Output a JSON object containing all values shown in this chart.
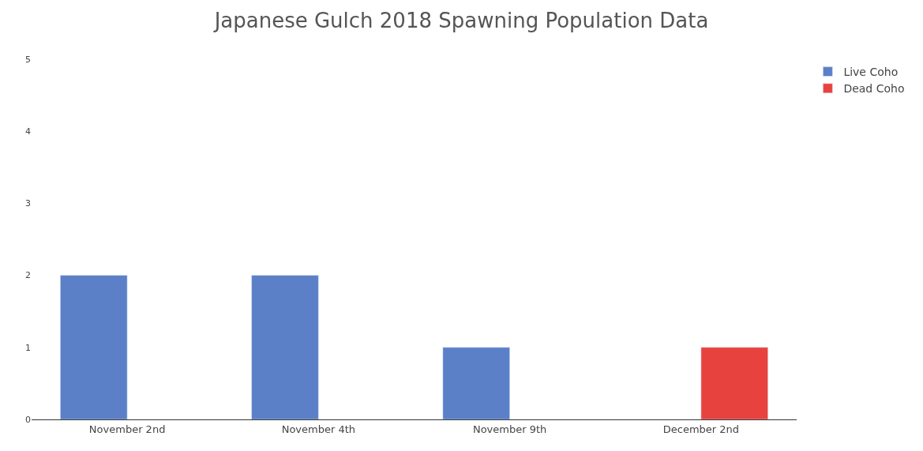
{
  "chart_data": {
    "type": "bar",
    "title": "Japanese Gulch 2018 Spawning Population Data",
    "categories": [
      "November 2nd",
      "November 4th",
      "November 9th",
      "December 2nd"
    ],
    "series": [
      {
        "name": "Live Coho",
        "color": "#5b80c8",
        "values": [
          2,
          2,
          1,
          null
        ]
      },
      {
        "name": "Dead Coho",
        "color": "#e8423f",
        "values": [
          null,
          null,
          null,
          1
        ]
      }
    ],
    "ylim": [
      0,
      5
    ],
    "yticks": [
      0,
      1,
      2,
      3,
      4,
      5
    ],
    "legend": "top right"
  }
}
